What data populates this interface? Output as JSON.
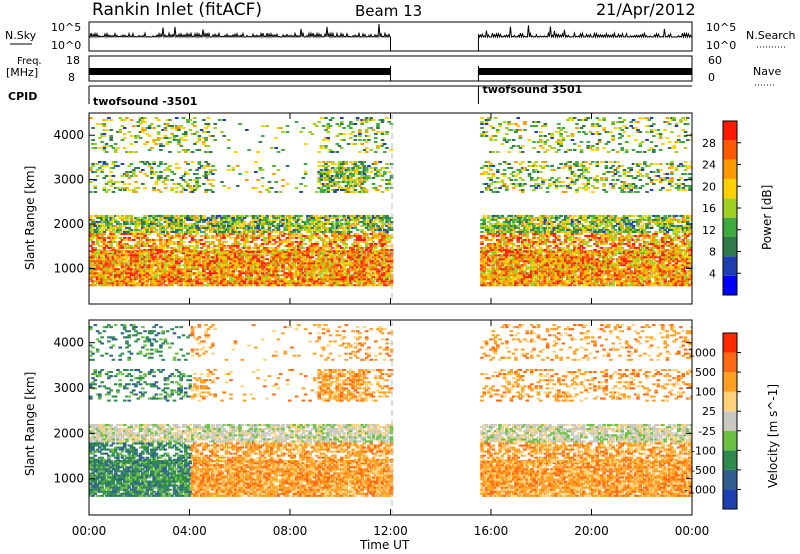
{
  "header": {
    "title": "Rankin Inlet (fitACF)",
    "beam": "Beam 13",
    "date": "21/Apr/2012"
  },
  "top_panels": {
    "nsky_label": "N.Sky",
    "nsky_ticks": [
      "10^5",
      "10^0"
    ],
    "nsearch_label": "N.Search",
    "nsearch_ticks": [
      "10^5",
      "10^0"
    ],
    "freq_label": "Freq.",
    "freq_unit": "[MHz]",
    "freq_ticks": [
      "18",
      "8"
    ],
    "nave_label": "Nave",
    "nave_ticks": [
      "60",
      "0"
    ],
    "cpid_label": "CPID",
    "cpid_segments": [
      {
        "label": "twofsound -3501",
        "start_hour": 0,
        "end_hour": 12
      },
      {
        "label": "twofsound 3501",
        "start_hour": 15.5,
        "end_hour": 24
      }
    ]
  },
  "chart_data": [
    {
      "type": "heatmap",
      "panel": "power",
      "ylabel": "Slant Range [km]",
      "xlim": [
        0,
        24
      ],
      "ylim": [
        200,
        4500
      ],
      "yticks": [
        "4000",
        "3000",
        "2000",
        "1000"
      ],
      "data_gap_hours": [
        12,
        15.5
      ],
      "colorbar": {
        "label": "Power [dB]",
        "ticks": [
          "28",
          "24",
          "20",
          "16",
          "12",
          "8",
          "4"
        ],
        "colors": [
          "#0000ff",
          "#1f3fb0",
          "#2f7a4a",
          "#3faa3f",
          "#9fd01f",
          "#ffd000",
          "#ff9a00",
          "#ff5a00",
          "#ff1a00"
        ]
      }
    },
    {
      "type": "heatmap",
      "panel": "velocity",
      "ylabel": "Slant Range [km]",
      "xlabel": "Time UT",
      "xlim": [
        0,
        24
      ],
      "ylim": [
        200,
        4500
      ],
      "yticks": [
        "4000",
        "3000",
        "2000",
        "1000"
      ],
      "xticks": [
        "00:00",
        "04:00",
        "08:00",
        "12:00",
        "16:00",
        "20:00",
        "00:00"
      ],
      "data_gap_hours": [
        12,
        15.5
      ],
      "colorbar": {
        "label": "Velocity [m s^-1]",
        "ticks": [
          "1000",
          "500",
          "100",
          "25",
          "-25",
          "-100",
          "-500",
          "-1000"
        ],
        "colors": [
          "#1f3fb0",
          "#2f5f90",
          "#2f8a4f",
          "#6ac03f",
          "#c8c8c0",
          "#ffd27a",
          "#ffa020",
          "#ff6a10",
          "#ff2a00"
        ]
      }
    }
  ]
}
